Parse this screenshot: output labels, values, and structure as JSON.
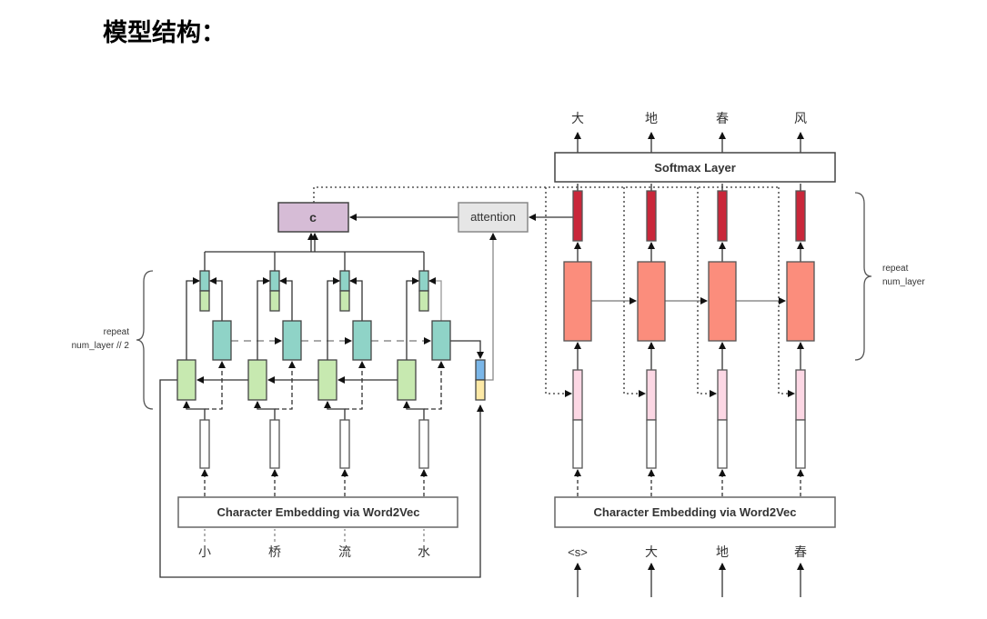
{
  "title": "模型结构：",
  "encoder": {
    "embedding_label": "Character Embedding via Word2Vec",
    "input_chars": [
      "小",
      "桥",
      "流",
      "水"
    ],
    "repeat_label_line1": "repeat",
    "repeat_label_line2": "num_layer // 2",
    "context_label": "c",
    "attention_label": "attention"
  },
  "decoder": {
    "softmax_label": "Softmax Layer",
    "embedding_label": "Character Embedding via Word2Vec",
    "input_chars": [
      "<s>",
      "大",
      "地",
      "春"
    ],
    "output_chars": [
      "大",
      "地",
      "春",
      "风"
    ],
    "repeat_label_line1": "repeat",
    "repeat_label_line2": "num_layer"
  },
  "colors": {
    "green": "#c7e9b0",
    "teal": "#8fd3c7",
    "purple": "#d6bcd6",
    "gray": "#e6e6e6",
    "red": "#c9273a",
    "salmon": "#fb8d7c",
    "pink": "#fcd7e4",
    "blue": "#7ab6e8",
    "yellow": "#fde9a6"
  }
}
